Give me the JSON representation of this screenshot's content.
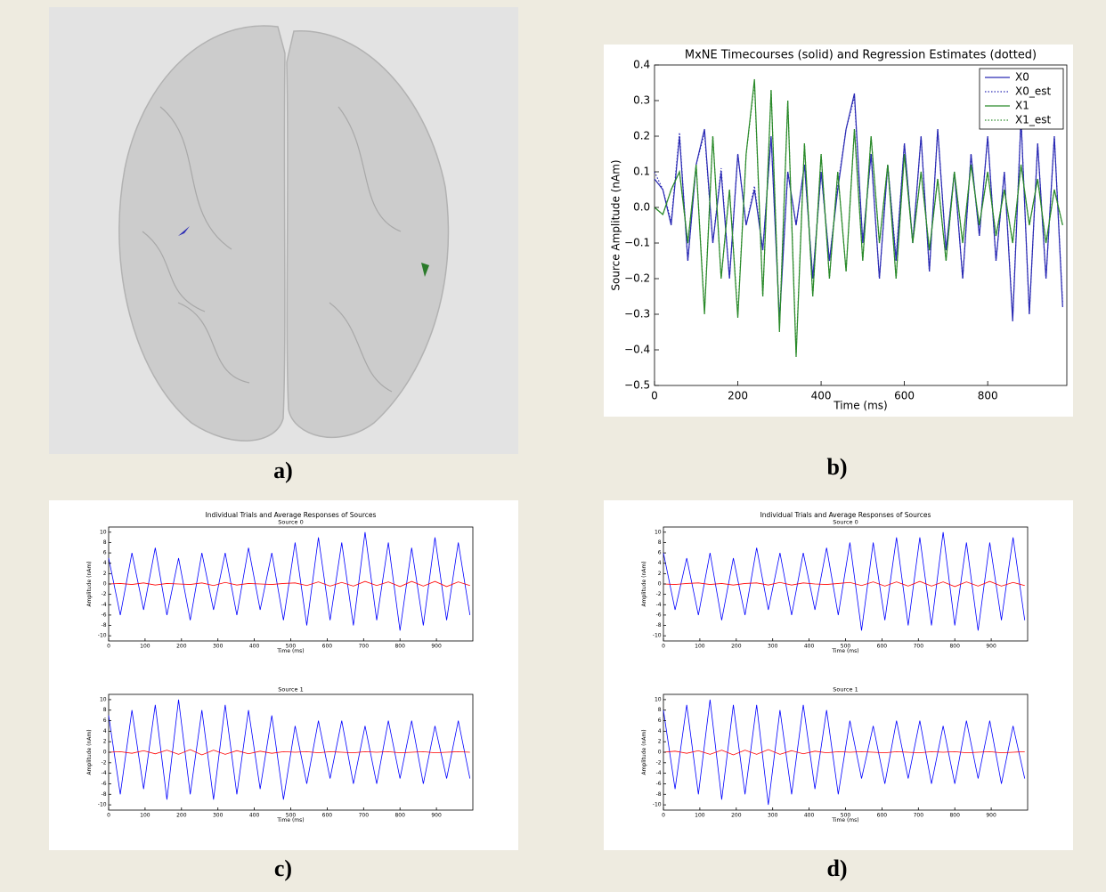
{
  "figure": {
    "labels": [
      "a)",
      "b)",
      "c)",
      "d)"
    ]
  },
  "chart_data": [
    {
      "type": "line",
      "title": "MxNE Timecourses (solid) and Regression Estimates (dotted)",
      "xlabel": "Time (ms)",
      "ylabel": "Source Amplitude (nAm)",
      "x": [
        0,
        20,
        40,
        60,
        80,
        100,
        120,
        140,
        160,
        180,
        200,
        220,
        240,
        260,
        280,
        300,
        320,
        340,
        360,
        380,
        400,
        420,
        440,
        460,
        480,
        500,
        520,
        540,
        560,
        580,
        600,
        620,
        640,
        660,
        680,
        700,
        720,
        740,
        760,
        780,
        800,
        820,
        840,
        860,
        880,
        900,
        920,
        940,
        960,
        980
      ],
      "series": [
        {
          "name": "X0",
          "color": "#2a2ab4",
          "style": "solid",
          "values": [
            0.08,
            0.05,
            -0.05,
            0.2,
            -0.15,
            0.12,
            0.22,
            -0.1,
            0.1,
            -0.2,
            0.15,
            -0.05,
            0.05,
            -0.12,
            0.2,
            -0.32,
            0.1,
            -0.05,
            0.12,
            -0.2,
            0.1,
            -0.15,
            0.05,
            0.22,
            0.32,
            -0.1,
            0.15,
            -0.2,
            0.12,
            -0.15,
            0.18,
            -0.1,
            0.2,
            -0.18,
            0.22,
            -0.12,
            0.1,
            -0.2,
            0.15,
            -0.08,
            0.2,
            -0.15,
            0.1,
            -0.32,
            0.25,
            -0.3,
            0.18,
            -0.2,
            0.2,
            -0.28
          ]
        },
        {
          "name": "X0_est",
          "color": "#2a2ab4",
          "style": "dotted",
          "values": [
            0.1,
            0.05,
            -0.04,
            0.21,
            -0.15,
            0.12,
            0.21,
            -0.1,
            0.11,
            -0.2,
            0.15,
            -0.05,
            0.06,
            -0.12,
            0.2,
            -0.31,
            0.1,
            -0.05,
            0.12,
            -0.2,
            0.1,
            -0.15,
            0.06,
            0.22,
            0.31,
            -0.1,
            0.15,
            -0.2,
            0.12,
            -0.14,
            0.18,
            -0.1,
            0.2,
            -0.18,
            0.22,
            -0.12,
            0.1,
            -0.2,
            0.15,
            -0.08,
            0.2,
            -0.15,
            0.1,
            -0.31,
            0.25,
            -0.3,
            0.18,
            -0.2,
            0.2,
            -0.27
          ]
        },
        {
          "name": "X1",
          "color": "#2a8a2a",
          "style": "solid",
          "values": [
            0.0,
            -0.02,
            0.05,
            0.1,
            -0.1,
            0.12,
            -0.3,
            0.2,
            -0.2,
            0.05,
            -0.31,
            0.15,
            0.36,
            -0.25,
            0.33,
            -0.35,
            0.3,
            -0.42,
            0.18,
            -0.25,
            0.15,
            -0.2,
            0.1,
            -0.18,
            0.22,
            -0.15,
            0.2,
            -0.1,
            0.12,
            -0.2,
            0.15,
            -0.1,
            0.1,
            -0.12,
            0.08,
            -0.15,
            0.1,
            -0.1,
            0.12,
            -0.05,
            0.1,
            -0.08,
            0.05,
            -0.1,
            0.12,
            -0.05,
            0.08,
            -0.1,
            0.05,
            -0.05
          ]
        },
        {
          "name": "X1_est",
          "color": "#2a8a2a",
          "style": "dotted",
          "values": [
            0.0,
            -0.02,
            0.05,
            0.1,
            -0.1,
            0.12,
            -0.29,
            0.2,
            -0.2,
            0.05,
            -0.3,
            0.15,
            0.35,
            -0.25,
            0.33,
            -0.34,
            0.3,
            -0.41,
            0.18,
            -0.25,
            0.15,
            -0.2,
            0.1,
            -0.18,
            0.22,
            -0.15,
            0.2,
            -0.1,
            0.12,
            -0.2,
            0.15,
            -0.1,
            0.1,
            -0.12,
            0.08,
            -0.15,
            0.1,
            -0.1,
            0.12,
            -0.05,
            0.1,
            -0.08,
            0.05,
            -0.1,
            0.12,
            -0.05,
            0.08,
            -0.1,
            0.05,
            -0.05
          ]
        }
      ],
      "xlim": [
        0,
        990
      ],
      "ylim": [
        -0.5,
        0.4
      ],
      "xticks": [
        0,
        200,
        400,
        600,
        800
      ],
      "yticks": [
        {
          "value": -0.5,
          "label": "−0.5"
        },
        {
          "value": -0.4,
          "label": "−0.4"
        },
        {
          "value": -0.3,
          "label": "−0.3"
        },
        {
          "value": -0.2,
          "label": "−0.2"
        },
        {
          "value": -0.1,
          "label": "−0.1"
        },
        {
          "value": 0,
          "label": "0.0"
        },
        0.1,
        0.2,
        0.3,
        0.4
      ],
      "legend": "upper right"
    },
    {
      "type": "line",
      "suptitle": "Individual Trials and Average Responses of Sources",
      "title": "Source 0",
      "xlabel": "Time (ms)",
      "ylabel": "Amplitude (nAm)",
      "x": [
        0,
        32,
        64,
        96,
        128,
        160,
        192,
        224,
        256,
        288,
        320,
        352,
        384,
        416,
        448,
        480,
        512,
        544,
        576,
        608,
        640,
        672,
        704,
        736,
        768,
        800,
        832,
        864,
        896,
        928,
        960,
        992
      ],
      "series": [
        {
          "color": "#0000ff",
          "values": [
            5,
            -6,
            6,
            -5,
            7,
            -6,
            5,
            -7,
            6,
            -5,
            6,
            -6,
            7,
            -5,
            6,
            -7,
            8,
            -8,
            9,
            -7,
            8,
            -8,
            10,
            -7,
            8,
            -9,
            7,
            -8,
            9,
            -7,
            8,
            -6
          ]
        },
        {
          "color": "#ff0000",
          "values": [
            0,
            0.1,
            -0.1,
            0.2,
            -0.2,
            0.1,
            0,
            -0.1,
            0.2,
            -0.3,
            0.3,
            -0.2,
            0.1,
            0,
            -0.1,
            0.1,
            0.2,
            -0.3,
            0.4,
            -0.4,
            0.3,
            -0.4,
            0.5,
            -0.3,
            0.4,
            -0.5,
            0.5,
            -0.4,
            0.5,
            -0.5,
            0.4,
            -0.3
          ]
        }
      ],
      "xlim": [
        0,
        1000
      ],
      "ylim": [
        -11,
        11
      ],
      "xticks": [
        0,
        100,
        200,
        300,
        400,
        500,
        600,
        700,
        800,
        900
      ],
      "yticks": [
        -10,
        -8,
        -6,
        -4,
        -2,
        0,
        2,
        4,
        6,
        8,
        10
      ]
    },
    {
      "type": "line",
      "title": "Source 1",
      "xlabel": "Time (ms)",
      "ylabel": "Amplitude (nAm)",
      "x": [
        0,
        32,
        64,
        96,
        128,
        160,
        192,
        224,
        256,
        288,
        320,
        352,
        384,
        416,
        448,
        480,
        512,
        544,
        576,
        608,
        640,
        672,
        704,
        736,
        768,
        800,
        832,
        864,
        896,
        928,
        960,
        992
      ],
      "series": [
        {
          "color": "#0000ff",
          "values": [
            7,
            -8,
            8,
            -7,
            9,
            -9,
            10,
            -8,
            8,
            -9,
            9,
            -8,
            8,
            -7,
            7,
            -9,
            5,
            -6,
            6,
            -5,
            6,
            -6,
            5,
            -6,
            6,
            -5,
            6,
            -6,
            5,
            -5,
            6,
            -5
          ]
        },
        {
          "color": "#ff0000",
          "values": [
            0,
            0.1,
            -0.2,
            0.3,
            -0.3,
            0.4,
            -0.4,
            0.5,
            -0.5,
            0.4,
            -0.4,
            0.3,
            -0.3,
            0.2,
            -0.2,
            0.1,
            0,
            0.1,
            -0.1,
            0.1,
            0,
            -0.1,
            0.1,
            0,
            0.1,
            -0.1,
            0,
            0.1,
            -0.1,
            0,
            0.1,
            0
          ]
        }
      ],
      "xlim": [
        0,
        1000
      ],
      "ylim": [
        -11,
        11
      ],
      "xticks": [
        0,
        100,
        200,
        300,
        400,
        500,
        600,
        700,
        800,
        900
      ],
      "yticks": [
        -10,
        -8,
        -6,
        -4,
        -2,
        0,
        2,
        4,
        6,
        8,
        10
      ]
    },
    {
      "type": "line",
      "suptitle": "Individual Trials and Average Responses of Sources",
      "title": "Source 0",
      "xlabel": "Time (ms)",
      "ylabel": "Amplitude (nAm)",
      "x": [
        0,
        32,
        64,
        96,
        128,
        160,
        192,
        224,
        256,
        288,
        320,
        352,
        384,
        416,
        448,
        480,
        512,
        544,
        576,
        608,
        640,
        672,
        704,
        736,
        768,
        800,
        832,
        864,
        896,
        928,
        960,
        992
      ],
      "series": [
        {
          "color": "#0000ff",
          "values": [
            6,
            -5,
            5,
            -6,
            6,
            -7,
            5,
            -6,
            7,
            -5,
            6,
            -6,
            6,
            -5,
            7,
            -6,
            8,
            -9,
            8,
            -7,
            9,
            -8,
            9,
            -8,
            10,
            -8,
            8,
            -9,
            8,
            -7,
            9,
            -7
          ]
        },
        {
          "color": "#ff0000",
          "values": [
            0,
            -0.1,
            0.1,
            0.2,
            -0.1,
            0.1,
            -0.2,
            0.1,
            0.2,
            -0.2,
            0.3,
            -0.2,
            0.2,
            0,
            -0.1,
            0.1,
            0.3,
            -0.3,
            0.4,
            -0.4,
            0.4,
            -0.4,
            0.5,
            -0.4,
            0.4,
            -0.5,
            0.4,
            -0.4,
            0.5,
            -0.4,
            0.3,
            -0.3
          ]
        }
      ],
      "xlim": [
        0,
        1000
      ],
      "ylim": [
        -11,
        11
      ],
      "xticks": [
        0,
        100,
        200,
        300,
        400,
        500,
        600,
        700,
        800,
        900
      ],
      "yticks": [
        -10,
        -8,
        -6,
        -4,
        -2,
        0,
        2,
        4,
        6,
        8,
        10
      ]
    },
    {
      "type": "line",
      "title": "Source 1",
      "xlabel": "Time (ms)",
      "ylabel": "Amplitude (nAm)",
      "x": [
        0,
        32,
        64,
        96,
        128,
        160,
        192,
        224,
        256,
        288,
        320,
        352,
        384,
        416,
        448,
        480,
        512,
        544,
        576,
        608,
        640,
        672,
        704,
        736,
        768,
        800,
        832,
        864,
        896,
        928,
        960,
        992
      ],
      "series": [
        {
          "color": "#0000ff",
          "values": [
            8,
            -7,
            9,
            -8,
            10,
            -9,
            9,
            -8,
            9,
            -10,
            8,
            -8,
            9,
            -7,
            8,
            -8,
            6,
            -5,
            5,
            -6,
            6,
            -5,
            6,
            -6,
            5,
            -6,
            6,
            -5,
            6,
            -6,
            5,
            -5
          ]
        },
        {
          "color": "#ff0000",
          "values": [
            0,
            0.2,
            -0.2,
            0.3,
            -0.4,
            0.4,
            -0.5,
            0.4,
            -0.4,
            0.5,
            -0.4,
            0.3,
            -0.3,
            0.2,
            -0.1,
            0.1,
            0,
            0.1,
            0,
            -0.1,
            0.1,
            0,
            -0.1,
            0.1,
            0,
            0.1,
            -0.1,
            0,
            0.1,
            -0.1,
            0,
            0.1
          ]
        }
      ],
      "xlim": [
        0,
        1000
      ],
      "ylim": [
        -11,
        11
      ],
      "xticks": [
        0,
        100,
        200,
        300,
        400,
        500,
        600,
        700,
        800,
        900
      ],
      "yticks": [
        -10,
        -8,
        -6,
        -4,
        -2,
        0,
        2,
        4,
        6,
        8,
        10
      ]
    }
  ]
}
